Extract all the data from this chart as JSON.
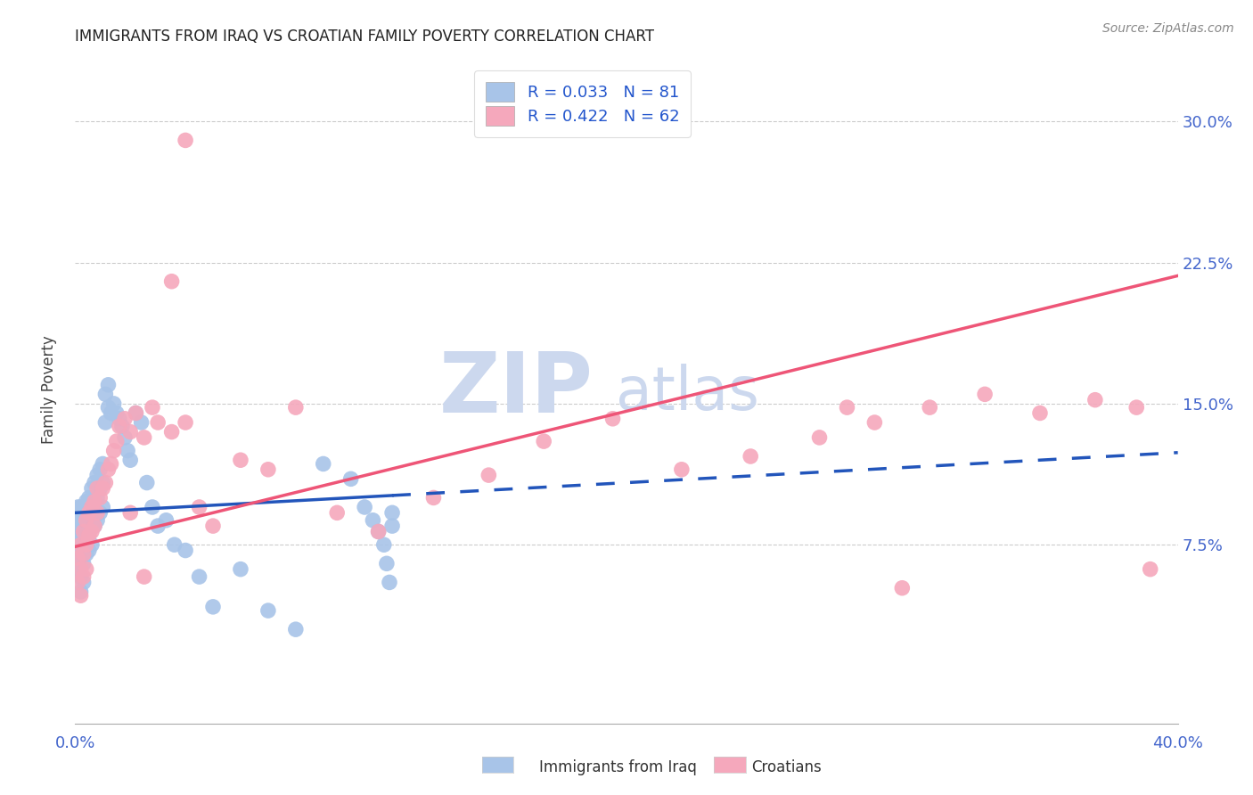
{
  "title": "IMMIGRANTS FROM IRAQ VS CROATIAN FAMILY POVERTY CORRELATION CHART",
  "source": "Source: ZipAtlas.com",
  "ylabel": "Family Poverty",
  "ytick_labels": [
    "7.5%",
    "15.0%",
    "22.5%",
    "30.0%"
  ],
  "ytick_values": [
    0.075,
    0.15,
    0.225,
    0.3
  ],
  "xlim": [
    0.0,
    0.4
  ],
  "ylim": [
    -0.02,
    0.335
  ],
  "legend_r1": "R = 0.033   N = 81",
  "legend_r2": "R = 0.422   N = 62",
  "series1_color": "#a8c4e8",
  "series2_color": "#f5a8bc",
  "line1_color": "#2255bb",
  "line2_color": "#ee5577",
  "line1_intercept": 0.092,
  "line1_slope": 0.08,
  "line2_intercept": 0.074,
  "line2_slope": 0.36,
  "line1_solid_end": 0.115,
  "watermark_zip": "ZIP",
  "watermark_atlas": "atlas",
  "watermark_color": "#ccd8ee",
  "background_color": "#ffffff",
  "iraq_x": [
    0.001,
    0.001,
    0.001,
    0.001,
    0.001,
    0.001,
    0.001,
    0.001,
    0.002,
    0.002,
    0.002,
    0.002,
    0.002,
    0.002,
    0.002,
    0.003,
    0.003,
    0.003,
    0.003,
    0.003,
    0.003,
    0.004,
    0.004,
    0.004,
    0.004,
    0.004,
    0.005,
    0.005,
    0.005,
    0.005,
    0.006,
    0.006,
    0.006,
    0.006,
    0.007,
    0.007,
    0.007,
    0.008,
    0.008,
    0.008,
    0.009,
    0.009,
    0.009,
    0.01,
    0.01,
    0.01,
    0.011,
    0.011,
    0.012,
    0.012,
    0.013,
    0.014,
    0.015,
    0.016,
    0.017,
    0.018,
    0.019,
    0.02,
    0.022,
    0.024,
    0.026,
    0.028,
    0.03,
    0.033,
    0.036,
    0.04,
    0.045,
    0.05,
    0.06,
    0.07,
    0.08,
    0.09,
    0.1,
    0.105,
    0.108,
    0.11,
    0.112,
    0.113,
    0.114,
    0.115,
    0.115
  ],
  "iraq_y": [
    0.09,
    0.085,
    0.095,
    0.082,
    0.078,
    0.07,
    0.065,
    0.06,
    0.095,
    0.088,
    0.082,
    0.075,
    0.068,
    0.058,
    0.05,
    0.092,
    0.085,
    0.078,
    0.072,
    0.065,
    0.055,
    0.098,
    0.09,
    0.085,
    0.078,
    0.07,
    0.1,
    0.092,
    0.082,
    0.072,
    0.105,
    0.095,
    0.085,
    0.075,
    0.108,
    0.098,
    0.085,
    0.112,
    0.1,
    0.088,
    0.115,
    0.105,
    0.092,
    0.118,
    0.108,
    0.095,
    0.155,
    0.14,
    0.16,
    0.148,
    0.145,
    0.15,
    0.145,
    0.142,
    0.138,
    0.132,
    0.125,
    0.12,
    0.145,
    0.14,
    0.108,
    0.095,
    0.085,
    0.088,
    0.075,
    0.072,
    0.058,
    0.042,
    0.062,
    0.04,
    0.03,
    0.118,
    0.11,
    0.095,
    0.088,
    0.082,
    0.075,
    0.065,
    0.055,
    0.092,
    0.085
  ],
  "croatian_x": [
    0.001,
    0.001,
    0.002,
    0.002,
    0.002,
    0.003,
    0.003,
    0.003,
    0.004,
    0.004,
    0.004,
    0.005,
    0.005,
    0.006,
    0.006,
    0.007,
    0.007,
    0.008,
    0.008,
    0.009,
    0.01,
    0.011,
    0.012,
    0.013,
    0.014,
    0.015,
    0.016,
    0.018,
    0.02,
    0.022,
    0.025,
    0.028,
    0.03,
    0.035,
    0.04,
    0.045,
    0.05,
    0.06,
    0.07,
    0.08,
    0.095,
    0.11,
    0.13,
    0.15,
    0.17,
    0.195,
    0.22,
    0.245,
    0.27,
    0.29,
    0.31,
    0.33,
    0.35,
    0.37,
    0.385,
    0.39,
    0.28,
    0.3,
    0.02,
    0.025,
    0.035,
    0.04
  ],
  "croatian_y": [
    0.068,
    0.055,
    0.075,
    0.062,
    0.048,
    0.082,
    0.07,
    0.058,
    0.088,
    0.075,
    0.062,
    0.092,
    0.08,
    0.095,
    0.082,
    0.098,
    0.085,
    0.105,
    0.092,
    0.1,
    0.105,
    0.108,
    0.115,
    0.118,
    0.125,
    0.13,
    0.138,
    0.142,
    0.135,
    0.145,
    0.132,
    0.148,
    0.14,
    0.135,
    0.14,
    0.095,
    0.085,
    0.12,
    0.115,
    0.148,
    0.092,
    0.082,
    0.1,
    0.112,
    0.13,
    0.142,
    0.115,
    0.122,
    0.132,
    0.14,
    0.148,
    0.155,
    0.145,
    0.152,
    0.148,
    0.062,
    0.148,
    0.052,
    0.092,
    0.058,
    0.215,
    0.29
  ]
}
